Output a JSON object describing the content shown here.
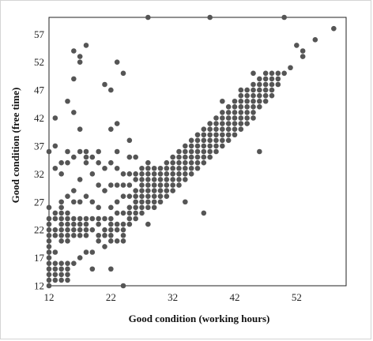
{
  "chart_data": {
    "type": "scatter",
    "xlabel": "Good condition (working hours)",
    "ylabel": "Good condition (free time)",
    "xlim": [
      12,
      60
    ],
    "ylim": [
      12,
      60
    ],
    "xticks": [
      "12",
      "22",
      "32",
      "42",
      "52"
    ],
    "yticks": [
      "12",
      "17",
      "22",
      "27",
      "32",
      "37",
      "42",
      "47",
      "52",
      "57"
    ],
    "grid": false,
    "marker_color": "#555555",
    "points": [
      [
        12,
        12
      ],
      [
        12,
        13
      ],
      [
        12,
        14
      ],
      [
        12,
        15
      ],
      [
        12,
        16
      ],
      [
        12,
        17
      ],
      [
        12,
        18
      ],
      [
        12,
        19
      ],
      [
        12,
        20
      ],
      [
        12,
        21
      ],
      [
        12,
        22
      ],
      [
        12,
        23
      ],
      [
        12,
        24
      ],
      [
        12,
        26
      ],
      [
        12,
        36
      ],
      [
        13,
        13
      ],
      [
        13,
        14
      ],
      [
        13,
        15
      ],
      [
        13,
        16
      ],
      [
        13,
        18
      ],
      [
        13,
        21
      ],
      [
        13,
        22
      ],
      [
        13,
        24
      ],
      [
        13,
        25
      ],
      [
        13,
        33
      ],
      [
        13,
        37
      ],
      [
        13,
        42
      ],
      [
        14,
        13
      ],
      [
        14,
        14
      ],
      [
        14,
        15
      ],
      [
        14,
        16
      ],
      [
        14,
        20
      ],
      [
        14,
        21
      ],
      [
        14,
        22
      ],
      [
        14,
        23
      ],
      [
        14,
        24
      ],
      [
        14,
        25
      ],
      [
        14,
        26
      ],
      [
        14,
        27
      ],
      [
        14,
        32
      ],
      [
        14,
        34
      ],
      [
        15,
        13
      ],
      [
        15,
        14
      ],
      [
        15,
        15
      ],
      [
        15,
        16
      ],
      [
        15,
        20
      ],
      [
        15,
        21
      ],
      [
        15,
        22
      ],
      [
        15,
        23
      ],
      [
        15,
        24
      ],
      [
        15,
        25
      ],
      [
        15,
        28
      ],
      [
        15,
        34
      ],
      [
        15,
        36
      ],
      [
        15,
        45
      ],
      [
        16,
        16
      ],
      [
        16,
        21
      ],
      [
        16,
        22
      ],
      [
        16,
        23
      ],
      [
        16,
        24
      ],
      [
        16,
        27
      ],
      [
        16,
        29
      ],
      [
        16,
        35
      ],
      [
        16,
        43
      ],
      [
        16,
        49
      ],
      [
        16,
        54
      ],
      [
        17,
        17
      ],
      [
        17,
        21
      ],
      [
        17,
        22
      ],
      [
        17,
        23
      ],
      [
        17,
        24
      ],
      [
        17,
        27
      ],
      [
        17,
        31
      ],
      [
        17,
        36
      ],
      [
        17,
        40
      ],
      [
        17,
        52
      ],
      [
        17,
        53
      ],
      [
        18,
        18
      ],
      [
        18,
        21
      ],
      [
        18,
        22
      ],
      [
        18,
        23
      ],
      [
        18,
        24
      ],
      [
        18,
        28
      ],
      [
        18,
        34
      ],
      [
        18,
        35
      ],
      [
        18,
        36
      ],
      [
        18,
        55
      ],
      [
        19,
        15
      ],
      [
        19,
        18
      ],
      [
        19,
        22
      ],
      [
        19,
        24
      ],
      [
        19,
        27
      ],
      [
        19,
        32
      ],
      [
        19,
        35
      ],
      [
        20,
        20
      ],
      [
        20,
        21
      ],
      [
        20,
        23
      ],
      [
        20,
        24
      ],
      [
        20,
        26
      ],
      [
        20,
        30
      ],
      [
        20,
        34
      ],
      [
        20,
        36
      ],
      [
        21,
        19
      ],
      [
        21,
        21
      ],
      [
        21,
        22
      ],
      [
        21,
        24
      ],
      [
        21,
        29
      ],
      [
        21,
        33
      ],
      [
        21,
        48
      ],
      [
        22,
        15
      ],
      [
        22,
        20
      ],
      [
        22,
        21
      ],
      [
        22,
        22
      ],
      [
        22,
        23
      ],
      [
        22,
        24
      ],
      [
        22,
        26
      ],
      [
        22,
        30
      ],
      [
        22,
        34
      ],
      [
        22,
        40
      ],
      [
        23,
        20
      ],
      [
        23,
        22
      ],
      [
        23,
        23
      ],
      [
        23,
        25
      ],
      [
        23,
        27
      ],
      [
        23,
        30
      ],
      [
        23,
        33
      ],
      [
        23,
        36
      ],
      [
        23,
        41
      ],
      [
        23,
        52
      ],
      [
        24,
        20
      ],
      [
        24,
        21
      ],
      [
        24,
        22
      ],
      [
        24,
        23
      ],
      [
        24,
        25
      ],
      [
        24,
        28
      ],
      [
        24,
        30
      ],
      [
        24,
        32
      ],
      [
        24,
        50
      ],
      [
        25,
        23
      ],
      [
        25,
        24
      ],
      [
        25,
        25
      ],
      [
        25,
        26
      ],
      [
        25,
        28
      ],
      [
        25,
        30
      ],
      [
        25,
        32
      ],
      [
        25,
        35
      ],
      [
        25,
        38
      ],
      [
        26,
        24
      ],
      [
        26,
        25
      ],
      [
        26,
        26
      ],
      [
        26,
        27
      ],
      [
        26,
        28
      ],
      [
        26,
        29
      ],
      [
        26,
        31
      ],
      [
        26,
        32
      ],
      [
        26,
        35
      ],
      [
        27,
        25
      ],
      [
        27,
        26
      ],
      [
        27,
        27
      ],
      [
        27,
        28
      ],
      [
        27,
        29
      ],
      [
        27,
        30
      ],
      [
        27,
        31
      ],
      [
        27,
        32
      ],
      [
        27,
        33
      ],
      [
        28,
        26
      ],
      [
        28,
        27
      ],
      [
        28,
        28
      ],
      [
        28,
        29
      ],
      [
        28,
        30
      ],
      [
        28,
        31
      ],
      [
        28,
        32
      ],
      [
        28,
        33
      ],
      [
        28,
        34
      ],
      [
        29,
        26
      ],
      [
        29,
        27
      ],
      [
        29,
        28
      ],
      [
        29,
        29
      ],
      [
        29,
        30
      ],
      [
        29,
        31
      ],
      [
        29,
        32
      ],
      [
        29,
        33
      ],
      [
        30,
        27
      ],
      [
        30,
        28
      ],
      [
        30,
        29
      ],
      [
        30,
        30
      ],
      [
        30,
        31
      ],
      [
        30,
        32
      ],
      [
        30,
        33
      ],
      [
        31,
        28
      ],
      [
        31,
        29
      ],
      [
        31,
        30
      ],
      [
        31,
        31
      ],
      [
        31,
        32
      ],
      [
        31,
        33
      ],
      [
        31,
        34
      ],
      [
        32,
        29
      ],
      [
        32,
        30
      ],
      [
        32,
        31
      ],
      [
        32,
        32
      ],
      [
        32,
        33
      ],
      [
        32,
        34
      ],
      [
        32,
        35
      ],
      [
        33,
        30
      ],
      [
        33,
        31
      ],
      [
        33,
        32
      ],
      [
        33,
        33
      ],
      [
        33,
        34
      ],
      [
        33,
        35
      ],
      [
        33,
        36
      ],
      [
        34,
        31
      ],
      [
        34,
        32
      ],
      [
        34,
        33
      ],
      [
        34,
        34
      ],
      [
        34,
        35
      ],
      [
        34,
        36
      ],
      [
        34,
        37
      ],
      [
        35,
        32
      ],
      [
        35,
        33
      ],
      [
        35,
        34
      ],
      [
        35,
        35
      ],
      [
        35,
        36
      ],
      [
        35,
        37
      ],
      [
        35,
        38
      ],
      [
        36,
        33
      ],
      [
        36,
        34
      ],
      [
        36,
        35
      ],
      [
        36,
        36
      ],
      [
        36,
        37
      ],
      [
        36,
        38
      ],
      [
        36,
        39
      ],
      [
        37,
        34
      ],
      [
        37,
        35
      ],
      [
        37,
        36
      ],
      [
        37,
        37
      ],
      [
        37,
        38
      ],
      [
        37,
        39
      ],
      [
        37,
        40
      ],
      [
        38,
        35
      ],
      [
        38,
        36
      ],
      [
        38,
        37
      ],
      [
        38,
        38
      ],
      [
        38,
        39
      ],
      [
        38,
        40
      ],
      [
        38,
        41
      ],
      [
        39,
        36
      ],
      [
        39,
        37
      ],
      [
        39,
        38
      ],
      [
        39,
        39
      ],
      [
        39,
        40
      ],
      [
        39,
        41
      ],
      [
        39,
        42
      ],
      [
        40,
        37
      ],
      [
        40,
        38
      ],
      [
        40,
        39
      ],
      [
        40,
        40
      ],
      [
        40,
        41
      ],
      [
        40,
        42
      ],
      [
        40,
        43
      ],
      [
        41,
        38
      ],
      [
        41,
        39
      ],
      [
        41,
        40
      ],
      [
        41,
        41
      ],
      [
        41,
        42
      ],
      [
        41,
        43
      ],
      [
        41,
        44
      ],
      [
        42,
        39
      ],
      [
        42,
        40
      ],
      [
        42,
        41
      ],
      [
        42,
        42
      ],
      [
        42,
        43
      ],
      [
        42,
        44
      ],
      [
        42,
        45
      ],
      [
        43,
        40
      ],
      [
        43,
        41
      ],
      [
        43,
        42
      ],
      [
        43,
        43
      ],
      [
        43,
        44
      ],
      [
        43,
        45
      ],
      [
        43,
        46
      ],
      [
        44,
        41
      ],
      [
        44,
        42
      ],
      [
        44,
        43
      ],
      [
        44,
        44
      ],
      [
        44,
        45
      ],
      [
        44,
        46
      ],
      [
        44,
        47
      ],
      [
        45,
        42
      ],
      [
        45,
        43
      ],
      [
        45,
        44
      ],
      [
        45,
        45
      ],
      [
        45,
        46
      ],
      [
        45,
        47
      ],
      [
        45,
        48
      ],
      [
        46,
        36
      ],
      [
        46,
        44
      ],
      [
        46,
        45
      ],
      [
        46,
        46
      ],
      [
        46,
        47
      ],
      [
        46,
        48
      ],
      [
        46,
        49
      ],
      [
        47,
        45
      ],
      [
        47,
        46
      ],
      [
        47,
        47
      ],
      [
        47,
        48
      ],
      [
        47,
        49
      ],
      [
        47,
        50
      ],
      [
        48,
        46
      ],
      [
        48,
        47
      ],
      [
        48,
        48
      ],
      [
        48,
        49
      ],
      [
        48,
        50
      ],
      [
        49,
        48
      ],
      [
        49,
        49
      ],
      [
        49,
        50
      ],
      [
        50,
        50
      ],
      [
        51,
        51
      ],
      [
        52,
        55
      ],
      [
        53,
        53
      ],
      [
        53,
        54
      ],
      [
        55,
        56
      ],
      [
        58,
        58
      ],
      [
        28,
        60
      ],
      [
        38,
        60
      ],
      [
        50,
        60
      ],
      [
        24,
        12
      ],
      [
        37,
        25
      ],
      [
        34,
        27
      ],
      [
        28,
        23
      ],
      [
        22,
        47
      ],
      [
        43,
        47
      ],
      [
        45,
        50
      ],
      [
        40,
        45
      ]
    ]
  }
}
